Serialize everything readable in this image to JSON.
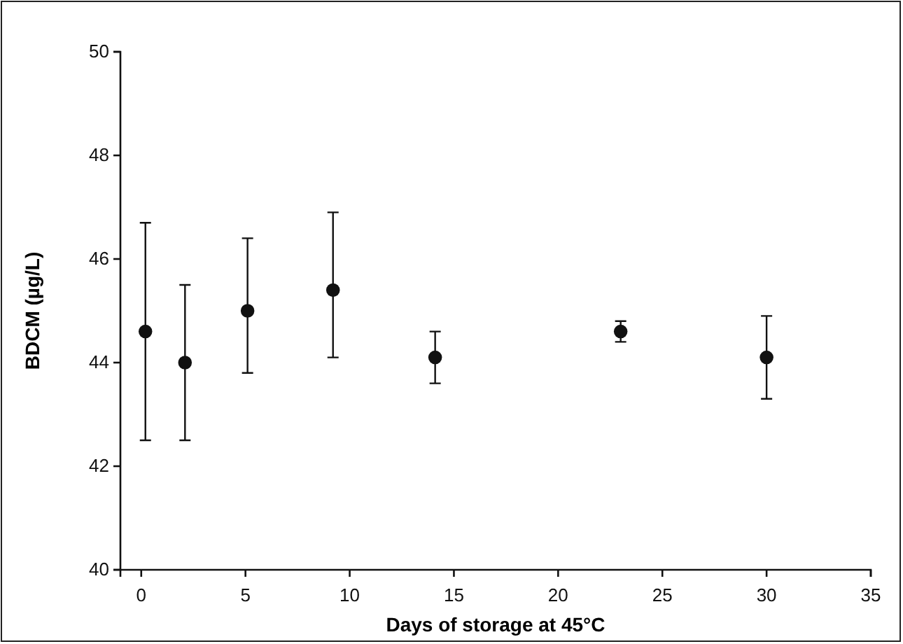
{
  "chart_data": {
    "type": "scatter",
    "xlabel": "Days of storage at 45°C",
    "ylabel": "BDCM (µg/L)",
    "x": [
      0.2,
      2.1,
      5.1,
      9.2,
      14.1,
      23,
      30
    ],
    "series": [
      {
        "color": "#111111",
        "values": [
          44.6,
          44.0,
          45.0,
          45.4,
          44.1,
          44.6,
          44.1
        ],
        "errors": [
          [
            42.5,
            46.7
          ],
          [
            42.5,
            45.5
          ],
          [
            43.8,
            46.4
          ],
          [
            44.1,
            46.9
          ],
          [
            43.6,
            44.6
          ],
          [
            44.4,
            44.8
          ],
          [
            43.3,
            44.9
          ]
        ]
      }
    ],
    "xlim": [
      -1,
      35
    ],
    "xticks": [
      0,
      5,
      10,
      15,
      20,
      25,
      30,
      35
    ],
    "ylim": [
      40,
      50
    ],
    "yticks": [
      40,
      42,
      44,
      46,
      48,
      50
    ],
    "marker": "circle"
  }
}
